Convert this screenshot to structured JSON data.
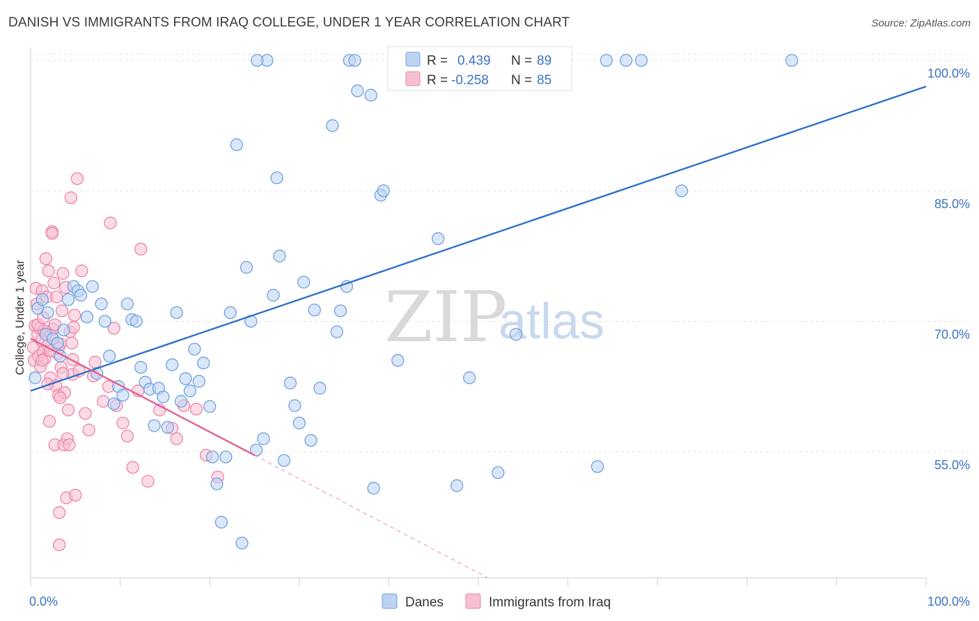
{
  "title": "DANISH VS IMMIGRANTS FROM IRAQ COLLEGE, UNDER 1 YEAR CORRELATION CHART",
  "source": "Source: ZipAtlas.com",
  "watermark": {
    "zip": "ZIP",
    "atlas": "atlas"
  },
  "colors": {
    "danes": "#6fa0e0",
    "danes_fill": "#bcd3f2",
    "iraq": "#ee82a8",
    "iraq_fill": "#f6c0d2",
    "danes_line": "#2f6fc9",
    "iraq_line": "#e0608e",
    "accent_text": "#3a72c4"
  },
  "legend": {
    "rows": [
      {
        "r_label": "R =",
        "r_value": "0.439",
        "n_label": "N =",
        "n_value": "89"
      },
      {
        "r_label": "R =",
        "r_value": "-0.258",
        "n_label": "N =",
        "n_value": "85"
      }
    ]
  },
  "bottom_legend": [
    "Danes",
    "Immigrants from Iraq"
  ],
  "chart_data": {
    "type": "scatter",
    "xlabel": "",
    "ylabel": "College, Under 1 year",
    "xlim": [
      0,
      100
    ],
    "ylim": [
      40.5,
      101.5
    ],
    "x_tick_labels": [
      "0.0%",
      "100.0%"
    ],
    "y_ticks": [
      55,
      70,
      85,
      100
    ],
    "y_tick_labels": [
      "55.0%",
      "70.0%",
      "85.0%",
      "100.0%"
    ],
    "grid": true,
    "series": [
      {
        "name": "Danes",
        "R": 0.439,
        "N": 89,
        "trend": {
          "x": [
            0,
            100
          ],
          "y": [
            62.0,
            97.0
          ],
          "style": "solid"
        },
        "points": [
          [
            0.5,
            63.5
          ],
          [
            0.8,
            71.5
          ],
          [
            1.3,
            72.5
          ],
          [
            1.7,
            68.5
          ],
          [
            1.9,
            71
          ],
          [
            2.5,
            68
          ],
          [
            3,
            67.5
          ],
          [
            3.3,
            66
          ],
          [
            3.7,
            69
          ],
          [
            4.2,
            72.5
          ],
          [
            4.8,
            74
          ],
          [
            5.3,
            73.5
          ],
          [
            5.6,
            73
          ],
          [
            6.3,
            70.5
          ],
          [
            6.9,
            74
          ],
          [
            7.4,
            64
          ],
          [
            7.9,
            72
          ],
          [
            8.3,
            70
          ],
          [
            8.8,
            66
          ],
          [
            9.3,
            60.5
          ],
          [
            9.8,
            62.5
          ],
          [
            10.3,
            61.5
          ],
          [
            10.8,
            72
          ],
          [
            11.3,
            70.2
          ],
          [
            11.8,
            70
          ],
          [
            12.3,
            64.7
          ],
          [
            12.8,
            63
          ],
          [
            13.3,
            62.2
          ],
          [
            13.8,
            58
          ],
          [
            14.3,
            62.3
          ],
          [
            14.8,
            61.3
          ],
          [
            15.3,
            57.8
          ],
          [
            15.8,
            65
          ],
          [
            16.3,
            71
          ],
          [
            16.8,
            60.8
          ],
          [
            17.3,
            63.4
          ],
          [
            17.8,
            62
          ],
          [
            18.3,
            66.8
          ],
          [
            18.8,
            63.1
          ],
          [
            19.3,
            65.2
          ],
          [
            20.0,
            60.2
          ],
          [
            20.3,
            54.4
          ],
          [
            20.8,
            51.3
          ],
          [
            21.3,
            46.9
          ],
          [
            21.8,
            54.4
          ],
          [
            22.3,
            71
          ],
          [
            23.0,
            90.3
          ],
          [
            23.6,
            44.5
          ],
          [
            24.1,
            76.2
          ],
          [
            24.6,
            70
          ],
          [
            25.2,
            55.2
          ],
          [
            26.0,
            56.5
          ],
          [
            26.4,
            100
          ],
          [
            27.1,
            73
          ],
          [
            27.5,
            86.5
          ],
          [
            27.8,
            77.5
          ],
          [
            28.3,
            54
          ],
          [
            29.0,
            62.9
          ],
          [
            29.5,
            60.3
          ],
          [
            30.0,
            58.3
          ],
          [
            30.5,
            74.5
          ],
          [
            31.3,
            56.3
          ],
          [
            31.7,
            71.3
          ],
          [
            32.3,
            62.3
          ],
          [
            33.7,
            92.5
          ],
          [
            34.2,
            68.8
          ],
          [
            34.6,
            71.2
          ],
          [
            35.3,
            74
          ],
          [
            36.5,
            96.5
          ],
          [
            38.0,
            96
          ],
          [
            38.3,
            50.8
          ],
          [
            39.1,
            84.5
          ],
          [
            39.4,
            85
          ],
          [
            41.0,
            65.5
          ],
          [
            44.0,
            100
          ],
          [
            45.5,
            79.5
          ],
          [
            47.6,
            51.1
          ],
          [
            49.0,
            63.5
          ],
          [
            52.2,
            52.6
          ],
          [
            54.2,
            68.5
          ],
          [
            63.3,
            53.3
          ],
          [
            64.3,
            100
          ],
          [
            66.5,
            100
          ],
          [
            68.2,
            100
          ],
          [
            72.7,
            85
          ],
          [
            85.0,
            100
          ],
          [
            25.3,
            100
          ],
          [
            35.6,
            100
          ],
          [
            36.2,
            100
          ]
        ]
      },
      {
        "name": "Immigrants from Iraq",
        "R": -0.258,
        "N": 85,
        "trend": {
          "x": [
            0,
            25,
            100
          ],
          "y": [
            68.0,
            54.6,
            14.0
          ],
          "solid_until": 25,
          "style": "solid-then-dashed"
        },
        "points": [
          [
            0.3,
            67
          ],
          [
            0.4,
            65.5
          ],
          [
            0.5,
            69.5
          ],
          [
            0.6,
            73.8
          ],
          [
            0.7,
            72
          ],
          [
            0.8,
            68.5
          ],
          [
            0.9,
            66
          ],
          [
            1.0,
            69.2
          ],
          [
            1.1,
            64.8
          ],
          [
            1.2,
            67.8
          ],
          [
            1.3,
            73.5
          ],
          [
            1.4,
            66.5
          ],
          [
            1.5,
            68.9
          ],
          [
            1.6,
            65.7
          ],
          [
            1.7,
            77.2
          ],
          [
            1.8,
            72.8
          ],
          [
            1.9,
            67.2
          ],
          [
            2.0,
            75.8
          ],
          [
            2.1,
            58.5
          ],
          [
            2.2,
            63.5
          ],
          [
            2.3,
            68.4
          ],
          [
            2.4,
            80.3
          ],
          [
            2.5,
            69.1
          ],
          [
            2.6,
            74.4
          ],
          [
            2.7,
            55.8
          ],
          [
            2.8,
            62.6
          ],
          [
            2.9,
            72.8
          ],
          [
            3.0,
            66.3
          ],
          [
            3.1,
            61.5
          ],
          [
            3.2,
            48
          ],
          [
            3.3,
            67.4
          ],
          [
            3.4,
            64.7
          ],
          [
            3.5,
            71.2
          ],
          [
            3.6,
            75.5
          ],
          [
            3.7,
            55.8
          ],
          [
            3.8,
            61.8
          ],
          [
            3.9,
            73.9
          ],
          [
            4.0,
            49.7
          ],
          [
            4.1,
            56.5
          ],
          [
            4.2,
            59.8
          ],
          [
            4.3,
            55.8
          ],
          [
            4.4,
            68.8
          ],
          [
            4.5,
            84.2
          ],
          [
            4.6,
            67.5
          ],
          [
            4.7,
            63.9
          ],
          [
            4.8,
            69.3
          ],
          [
            4.9,
            70.7
          ],
          [
            5.0,
            50
          ],
          [
            5.2,
            86.4
          ],
          [
            5.4,
            64.3
          ],
          [
            5.7,
            75.8
          ],
          [
            6.1,
            59.4
          ],
          [
            6.5,
            57.5
          ],
          [
            7.0,
            63.7
          ],
          [
            7.2,
            65.3
          ],
          [
            8.1,
            60.8
          ],
          [
            8.7,
            62.5
          ],
          [
            8.9,
            81.3
          ],
          [
            9.3,
            69.2
          ],
          [
            9.6,
            60.3
          ],
          [
            10.3,
            58.3
          ],
          [
            10.8,
            56.8
          ],
          [
            11.4,
            53.2
          ],
          [
            12.0,
            62
          ],
          [
            12.3,
            78.3
          ],
          [
            13.1,
            51.6
          ],
          [
            14.4,
            59.8
          ],
          [
            15.8,
            57.7
          ],
          [
            16.3,
            56.5
          ],
          [
            17.1,
            60.3
          ],
          [
            18.5,
            59.9
          ],
          [
            19.6,
            54.6
          ],
          [
            20.9,
            52.1
          ],
          [
            2.4,
            80.1
          ],
          [
            1.3,
            65.5
          ],
          [
            0.8,
            69.6
          ],
          [
            3.1,
            66.9
          ],
          [
            1.9,
            62.8
          ],
          [
            3.3,
            61.2
          ],
          [
            2.7,
            69.6
          ],
          [
            3.6,
            64
          ],
          [
            4.7,
            65.6
          ],
          [
            3.2,
            44.3
          ],
          [
            1.4,
            70.4
          ],
          [
            2.2,
            66.6
          ]
        ]
      }
    ]
  }
}
